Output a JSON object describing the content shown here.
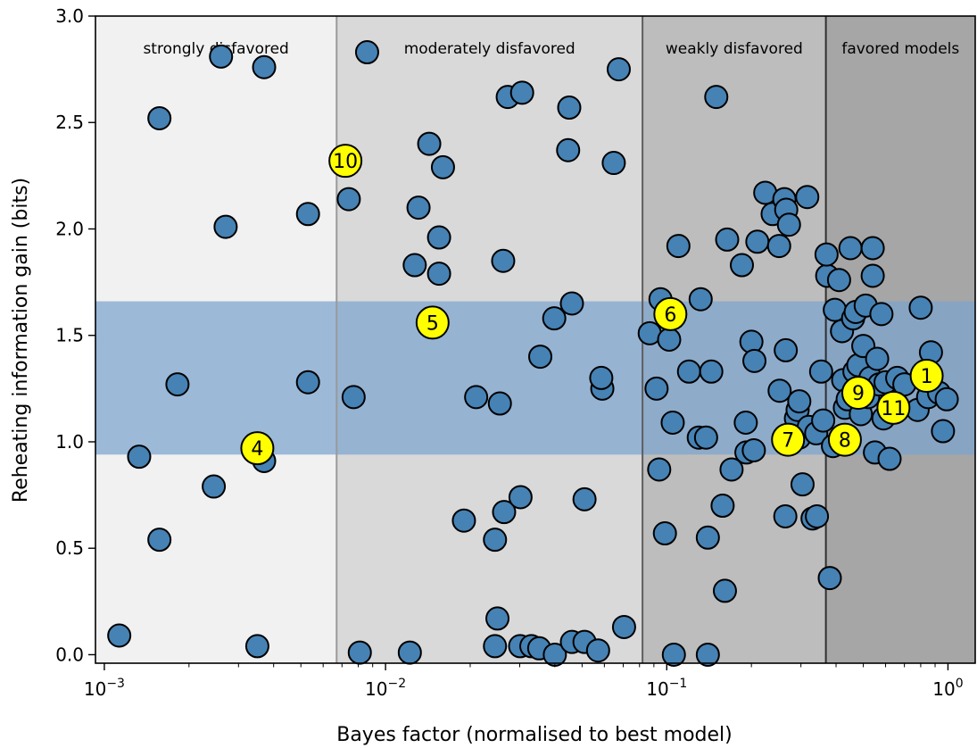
{
  "chart_data": {
    "type": "scatter",
    "xlabel": "Bayes factor (normalised to best model)",
    "ylabel": "Reheating information gain (bits)",
    "x_scale": "log",
    "xlim": [
      0.00093,
      1.25
    ],
    "ylim": [
      -0.04,
      3.0
    ],
    "x_ticks": [
      {
        "value": 0.001,
        "base": "10",
        "exp": "−3"
      },
      {
        "value": 0.01,
        "base": "10",
        "exp": "−2"
      },
      {
        "value": 0.1,
        "base": "10",
        "exp": "−1"
      },
      {
        "value": 1,
        "base": "10",
        "exp": "0"
      }
    ],
    "y_ticks": [
      {
        "value": 0.0,
        "label": "0.0"
      },
      {
        "value": 0.5,
        "label": "0.5"
      },
      {
        "value": 1.0,
        "label": "1.0"
      },
      {
        "value": 1.5,
        "label": "1.5"
      },
      {
        "value": 2.0,
        "label": "2.0"
      },
      {
        "value": 2.5,
        "label": "2.5"
      },
      {
        "value": 3.0,
        "label": "3.0"
      }
    ],
    "regions": [
      {
        "label": "strongly disfavored",
        "from": 0.00093,
        "to": 0.0067,
        "color": "#f1f1f1"
      },
      {
        "label": "moderately disfavored",
        "from": 0.0067,
        "to": 0.082,
        "color": "#d9d9d9"
      },
      {
        "label": "weakly disfavored",
        "from": 0.082,
        "to": 0.368,
        "color": "#bdbdbd"
      },
      {
        "label": "favored models",
        "from": 0.368,
        "to": 1.25,
        "color": "#a6a6a6"
      }
    ],
    "boundaries": [
      {
        "value": 0.0067,
        "color": "#9a9a9a"
      },
      {
        "value": 0.082,
        "color": "#5e5e5e"
      },
      {
        "value": 0.368,
        "color": "#303030"
      }
    ],
    "band": {
      "ymin": 0.94,
      "ymax": 1.66,
      "color": "#7ba3cf"
    },
    "marker_color": "#4682b4",
    "highlight_color": "#ffff00",
    "points": [
      [
        0.00113,
        0.09
      ],
      [
        0.00133,
        0.93
      ],
      [
        0.00157,
        2.52
      ],
      [
        0.00157,
        0.54
      ],
      [
        0.00182,
        1.27
      ],
      [
        0.00245,
        0.79
      ],
      [
        0.0026,
        2.81
      ],
      [
        0.0027,
        2.01
      ],
      [
        0.0035,
        0.04
      ],
      [
        0.0037,
        2.76
      ],
      [
        0.0037,
        0.91
      ],
      [
        0.0053,
        2.07
      ],
      [
        0.0053,
        1.28
      ],
      [
        0.0074,
        2.14
      ],
      [
        0.0077,
        1.21
      ],
      [
        0.0081,
        0.01
      ],
      [
        0.0086,
        2.83
      ],
      [
        0.0122,
        0.01
      ],
      [
        0.0127,
        1.83
      ],
      [
        0.0131,
        2.1
      ],
      [
        0.0143,
        2.4
      ],
      [
        0.0155,
        1.79
      ],
      [
        0.0155,
        1.96
      ],
      [
        0.016,
        2.29
      ],
      [
        0.019,
        0.63
      ],
      [
        0.021,
        1.21
      ],
      [
        0.0245,
        0.54
      ],
      [
        0.025,
        0.17
      ],
      [
        0.0245,
        0.04
      ],
      [
        0.0255,
        1.18
      ],
      [
        0.0262,
        1.85
      ],
      [
        0.0264,
        0.67
      ],
      [
        0.0272,
        2.62
      ],
      [
        0.0302,
        0.74
      ],
      [
        0.0306,
        2.64
      ],
      [
        0.0301,
        0.04
      ],
      [
        0.033,
        0.04
      ],
      [
        0.0352,
        0.03
      ],
      [
        0.0355,
        1.4
      ],
      [
        0.0398,
        1.58
      ],
      [
        0.04,
        0.0
      ],
      [
        0.045,
        2.57
      ],
      [
        0.0446,
        2.37
      ],
      [
        0.046,
        1.65
      ],
      [
        0.046,
        0.06
      ],
      [
        0.051,
        0.73
      ],
      [
        0.051,
        0.06
      ],
      [
        0.057,
        0.02
      ],
      [
        0.059,
        1.25
      ],
      [
        0.0585,
        1.3
      ],
      [
        0.0648,
        2.31
      ],
      [
        0.0675,
        2.75
      ],
      [
        0.0705,
        0.13
      ],
      [
        0.087,
        1.51
      ],
      [
        0.092,
        1.25
      ],
      [
        0.095,
        1.67
      ],
      [
        0.094,
        0.87
      ],
      [
        0.0985,
        0.57
      ],
      [
        0.102,
        1.48
      ],
      [
        0.105,
        1.09
      ],
      [
        0.106,
        0.0
      ],
      [
        0.11,
        1.92
      ],
      [
        0.12,
        1.33
      ],
      [
        0.13,
        1.02
      ],
      [
        0.132,
        1.67
      ],
      [
        0.138,
        1.02
      ],
      [
        0.14,
        0.55
      ],
      [
        0.144,
        1.33
      ],
      [
        0.14,
        0.0
      ],
      [
        0.15,
        2.62
      ],
      [
        0.158,
        0.7
      ],
      [
        0.161,
        0.3
      ],
      [
        0.164,
        1.95
      ],
      [
        0.17,
        0.87
      ],
      [
        0.185,
        1.83
      ],
      [
        0.191,
        1.09
      ],
      [
        0.192,
        0.95
      ],
      [
        0.2,
        1.47
      ],
      [
        0.205,
        1.38
      ],
      [
        0.21,
        1.94
      ],
      [
        0.204,
        0.96
      ],
      [
        0.224,
        2.17
      ],
      [
        0.238,
        2.07
      ],
      [
        0.251,
        1.92
      ],
      [
        0.252,
        1.24
      ],
      [
        0.262,
        2.14
      ],
      [
        0.265,
        1.43
      ],
      [
        0.266,
        2.09
      ],
      [
        0.264,
        0.65
      ],
      [
        0.272,
        2.02
      ],
      [
        0.288,
        1.11
      ],
      [
        0.292,
        1.15
      ],
      [
        0.296,
        1.19
      ],
      [
        0.296,
        1.02
      ],
      [
        0.304,
        0.8
      ],
      [
        0.316,
        2.15
      ],
      [
        0.32,
        1.07
      ],
      [
        0.33,
        0.64
      ],
      [
        0.34,
        1.04
      ],
      [
        0.342,
        0.65
      ],
      [
        0.354,
        1.33
      ],
      [
        0.36,
        1.1
      ],
      [
        0.372,
        1.78
      ],
      [
        0.37,
        1.88
      ],
      [
        0.38,
        0.36
      ],
      [
        0.39,
        0.98
      ],
      [
        0.396,
        1.62
      ],
      [
        0.41,
        1.76
      ],
      [
        0.42,
        1.52
      ],
      [
        0.424,
        1.29
      ],
      [
        0.425,
        1.03
      ],
      [
        0.43,
        1.16
      ],
      [
        0.44,
        1.2
      ],
      [
        0.45,
        1.91
      ],
      [
        0.46,
        1.58
      ],
      [
        0.465,
        1.33
      ],
      [
        0.47,
        1.61
      ],
      [
        0.48,
        1.36
      ],
      [
        0.49,
        1.13
      ],
      [
        0.5,
        1.45
      ],
      [
        0.51,
        1.64
      ],
      [
        0.52,
        1.21
      ],
      [
        0.53,
        1.3
      ],
      [
        0.54,
        1.78
      ],
      [
        0.54,
        1.91
      ],
      [
        0.55,
        0.95
      ],
      [
        0.56,
        1.39
      ],
      [
        0.57,
        1.27
      ],
      [
        0.58,
        1.6
      ],
      [
        0.59,
        1.11
      ],
      [
        0.6,
        1.28
      ],
      [
        0.62,
        0.92
      ],
      [
        0.66,
        1.3
      ],
      [
        0.7,
        1.27
      ],
      [
        0.78,
        1.15
      ],
      [
        0.8,
        1.63
      ],
      [
        0.85,
        1.21
      ],
      [
        0.87,
        1.42
      ],
      [
        0.93,
        1.23
      ],
      [
        0.96,
        1.05
      ],
      [
        0.99,
        1.2
      ]
    ],
    "highlighted": [
      {
        "label": "1",
        "x": 0.84,
        "y": 1.31
      },
      {
        "label": "4",
        "x": 0.0035,
        "y": 0.97
      },
      {
        "label": "5",
        "x": 0.0147,
        "y": 1.56
      },
      {
        "label": "6",
        "x": 0.103,
        "y": 1.6
      },
      {
        "label": "7",
        "x": 0.27,
        "y": 1.01
      },
      {
        "label": "8",
        "x": 0.43,
        "y": 1.01
      },
      {
        "label": "9",
        "x": 0.48,
        "y": 1.23
      },
      {
        "label": "10",
        "x": 0.0072,
        "y": 2.32
      },
      {
        "label": "11",
        "x": 0.64,
        "y": 1.16
      }
    ]
  }
}
